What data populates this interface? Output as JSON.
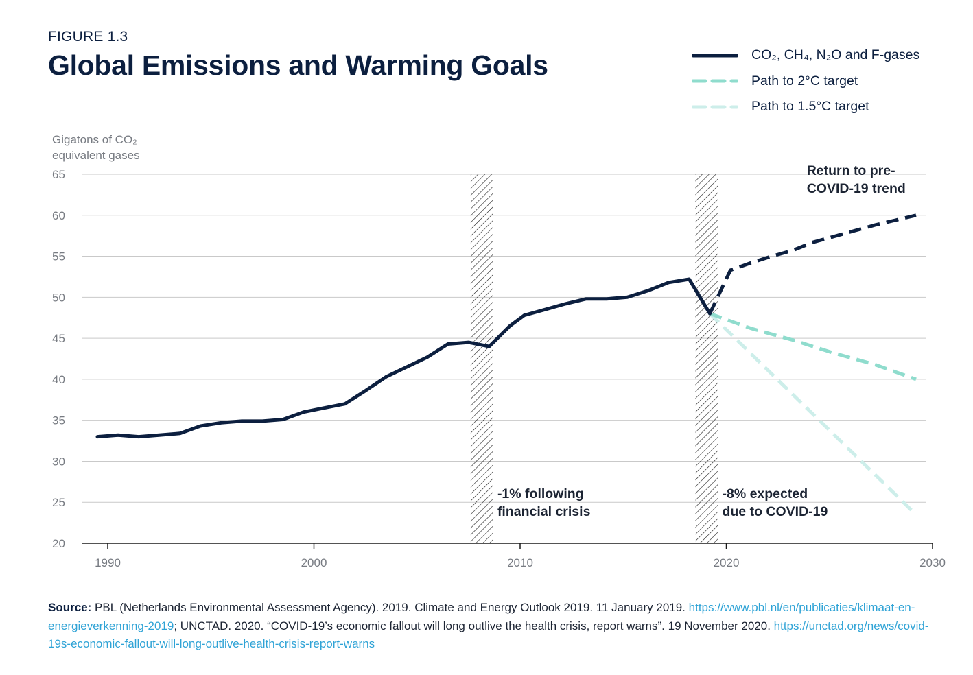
{
  "figure_label": "FIGURE 1.3",
  "colors": {
    "navy": "#0c1f3f",
    "teal": "#8fdccd",
    "light_teal": "#cdeeea",
    "grid": "#c9c9c9",
    "tick_text": "#777b82",
    "link": "#2fa3d6"
  },
  "legend": [
    {
      "label": "CO₂, CH₄, N₂O and F-gases",
      "color": "#0c1f3f",
      "style": "solid"
    },
    {
      "label": "Path to 2°C target",
      "color": "#8fdccd",
      "style": "dashed"
    },
    {
      "label": "Path to 1.5°C target",
      "color": "#cdeeea",
      "style": "dashed"
    }
  ],
  "chart_data": {
    "type": "line",
    "title": "Global Emissions and Warming Goals",
    "ylabel_lines": [
      "Gigatons of CO₂",
      "equivalent gases"
    ],
    "xlabel": "",
    "xlim": [
      1989,
      2030
    ],
    "ylim": [
      20,
      65
    ],
    "xticks": [
      "1990",
      "2000",
      "2010",
      "2020",
      "2030"
    ],
    "xtick_values": [
      1990,
      2000,
      2010,
      2020,
      2030
    ],
    "yticks": [
      "65",
      "60",
      "55",
      "50",
      "45",
      "40",
      "35",
      "30",
      "25",
      "20"
    ],
    "ytick_values": [
      65,
      60,
      55,
      50,
      45,
      40,
      35,
      30,
      25,
      20
    ],
    "grid": true,
    "series": [
      {
        "name": "CO₂, CH₄, N₂O and F-gases",
        "style": "solid",
        "color": "#0c1f3f",
        "x": [
          1989.5,
          1990.5,
          1991.5,
          1992.5,
          1993.5,
          1994.5,
          1995.5,
          1996.5,
          1997.5,
          1998.5,
          1999.5,
          2000.5,
          2001.5,
          2002.5,
          2003.5,
          2004.5,
          2005.5,
          2006.5,
          2007.5,
          2008.5,
          2009.5,
          2010.2,
          2011.2,
          2012.2,
          2013.2,
          2014.2,
          2015.2,
          2016.2,
          2017.2,
          2018.2,
          2019.2
        ],
        "y": [
          33.0,
          33.2,
          33.0,
          33.2,
          33.4,
          34.3,
          34.7,
          34.9,
          34.9,
          35.1,
          36.0,
          36.5,
          37.0,
          38.6,
          40.3,
          41.5,
          42.7,
          44.3,
          44.5,
          44.0,
          46.5,
          47.8,
          48.5,
          49.2,
          49.8,
          49.8,
          50.0,
          50.8,
          51.8,
          52.2,
          48.0
        ]
      },
      {
        "name": "Return to pre-COVID-19 trend",
        "style": "dashed",
        "color": "#0c1f3f",
        "x": [
          2019.2,
          2020.2,
          2021.2,
          2022.2,
          2023.2,
          2024.2,
          2025.2,
          2026.2,
          2027.2,
          2028.2,
          2029.2
        ],
        "y": [
          48.0,
          53.3,
          54.2,
          55.0,
          55.7,
          56.7,
          57.4,
          58.1,
          58.8,
          59.4,
          60.0
        ]
      },
      {
        "name": "Path to 2°C target",
        "style": "dashed",
        "color": "#8fdccd",
        "x": [
          2019.2,
          2021.2,
          2023.2,
          2025.2,
          2027.2,
          2029.2
        ],
        "y": [
          48.0,
          46.2,
          44.8,
          43.2,
          41.8,
          40.0
        ]
      },
      {
        "name": "Path to 1.5°C target",
        "style": "dashed",
        "color": "#cdeeea",
        "x": [
          2019.2,
          2029.2
        ],
        "y": [
          48.0,
          23.5
        ]
      }
    ],
    "shaded_periods": [
      {
        "name": "financial-crisis",
        "x": [
          2007.6,
          2008.7
        ]
      },
      {
        "name": "covid",
        "x": [
          2018.5,
          2019.6
        ]
      }
    ],
    "annotations": [
      {
        "name": "financial-crisis-note",
        "lines": [
          "-1% following",
          "financial crisis"
        ],
        "x": 2008.9,
        "y": 25.5
      },
      {
        "name": "covid-note",
        "lines": [
          "-8% expected",
          "due to COVID-19"
        ],
        "x": 2019.8,
        "y": 25.5
      },
      {
        "name": "return-trend-note",
        "lines": [
          "Return to pre-",
          "COVID-19 trend"
        ],
        "x": 2023.9,
        "y": 64.9
      }
    ]
  },
  "source": {
    "label": "Source:",
    "text1": " PBL (Netherlands Environmental Assessment Agency). 2019. Climate and Energy Outlook 2019. 11 January 2019. ",
    "link1": "https://www.pbl.nl/en/publicaties/klimaat-en-energieverkenning-2019",
    "text2": "; UNCTAD. 2020. “COVID-19’s economic fallout will long outlive the health crisis, report warns”. 19 November 2020. ",
    "link2": "https://unctad.org/news/covid-19s-economic-fallout-will-long-outlive-health-crisis-report-warns"
  }
}
